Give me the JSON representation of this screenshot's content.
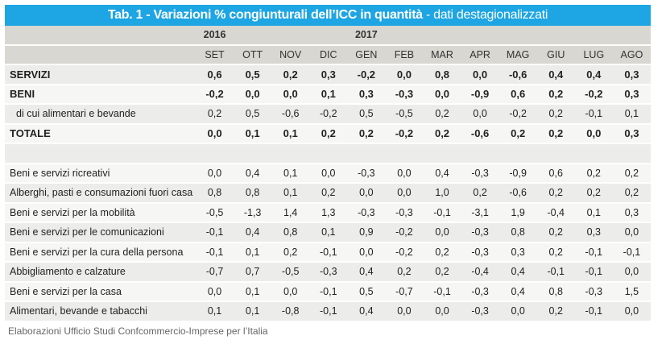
{
  "title": {
    "main": "Tab. 1 - Variazioni % congiunturali dell’ICC in quantità",
    "sub": " - dati destagionalizzati"
  },
  "years": [
    {
      "label": "2016",
      "col": 0
    },
    {
      "label": "2017",
      "col": 4
    }
  ],
  "months": [
    "SET",
    "OTT",
    "NOV",
    "DIC",
    "GEN",
    "FEB",
    "MAR",
    "APR",
    "MAG",
    "GIU",
    "LUG",
    "AGO"
  ],
  "rows": [
    {
      "label": "SERVIZI",
      "style": "bold",
      "values": [
        "0,6",
        "0,5",
        "0,2",
        "0,3",
        "-0,2",
        "0,0",
        "0,8",
        "0,0",
        "-0,6",
        "0,4",
        "0,4",
        "0,3"
      ]
    },
    {
      "label": "BENI",
      "style": "bold",
      "values": [
        "-0,2",
        "0,0",
        "0,0",
        "0,1",
        "0,3",
        "-0,3",
        "0,0",
        "-0,9",
        "0,6",
        "0,2",
        "-0,2",
        "0,3"
      ]
    },
    {
      "label": "di cui alimentari e bevande",
      "style": "sub",
      "values": [
        "0,2",
        "0,5",
        "-0,6",
        "-0,2",
        "0,5",
        "-0,5",
        "0,2",
        "0,0",
        "-0,2",
        "0,2",
        "-0,1",
        "0,1"
      ]
    },
    {
      "label": "TOTALE",
      "style": "bold",
      "values": [
        "0,0",
        "0,1",
        "0,1",
        "0,2",
        "0,2",
        "-0,2",
        "0,2",
        "-0,6",
        "0,2",
        "0,2",
        "0,0",
        "0,3"
      ]
    },
    {
      "label": "",
      "style": "blank",
      "values": [
        "",
        "",
        "",
        "",
        "",
        "",
        "",
        "",
        "",
        "",
        "",
        ""
      ]
    },
    {
      "label": "Beni e servizi ricreativi",
      "style": "",
      "values": [
        "0,0",
        "0,4",
        "0,1",
        "0,0",
        "-0,3",
        "0,0",
        "0,4",
        "-0,3",
        "-0,9",
        "0,6",
        "0,2",
        "0,2"
      ]
    },
    {
      "label": "Alberghi, pasti e consumazioni fuori casa",
      "style": "",
      "values": [
        "0,8",
        "0,8",
        "0,1",
        "0,2",
        "0,0",
        "0,0",
        "1,0",
        "0,2",
        "-0,6",
        "0,2",
        "0,2",
        "0,2"
      ]
    },
    {
      "label": "Beni e servizi per la mobilità",
      "style": "",
      "values": [
        "-0,5",
        "-1,3",
        "1,4",
        "1,3",
        "-0,3",
        "-0,3",
        "-0,1",
        "-3,1",
        "1,9",
        "-0,4",
        "0,1",
        "0,3"
      ]
    },
    {
      "label": "Beni e servizi per le comunicazioni",
      "style": "",
      "values": [
        "-0,1",
        "0,4",
        "0,8",
        "0,1",
        "0,9",
        "-0,2",
        "0,0",
        "-0,3",
        "0,8",
        "0,2",
        "0,3",
        "0,0"
      ]
    },
    {
      "label": "Beni e servizi per la cura della persona",
      "style": "",
      "values": [
        "-0,1",
        "0,1",
        "0,2",
        "-0,1",
        "0,0",
        "-0,2",
        "0,2",
        "-0,3",
        "0,3",
        "0,2",
        "-0,1",
        "-0,1"
      ]
    },
    {
      "label": "Abbigliamento e calzature",
      "style": "",
      "values": [
        "-0,7",
        "0,7",
        "-0,5",
        "-0,3",
        "0,4",
        "0,2",
        "0,2",
        "-0,4",
        "0,4",
        "-0,1",
        "-0,1",
        "0,0"
      ]
    },
    {
      "label": "Beni e servizi per la casa",
      "style": "",
      "values": [
        "0,0",
        "0,1",
        "0,0",
        "-0,1",
        "0,5",
        "-0,7",
        "-0,1",
        "-0,3",
        "0,4",
        "0,8",
        "-0,3",
        "1,5"
      ]
    },
    {
      "label": "Alimentari, bevande e tabacchi",
      "style": "",
      "values": [
        "0,1",
        "0,1",
        "-0,8",
        "-0,1",
        "0,4",
        "0,0",
        "0,0",
        "-0,3",
        "0,0",
        "0,2",
        "-0,1",
        "0,0"
      ]
    }
  ],
  "footer": "Elaborazioni Ufficio Studi Confcommercio-Imprese per l’Italia"
}
